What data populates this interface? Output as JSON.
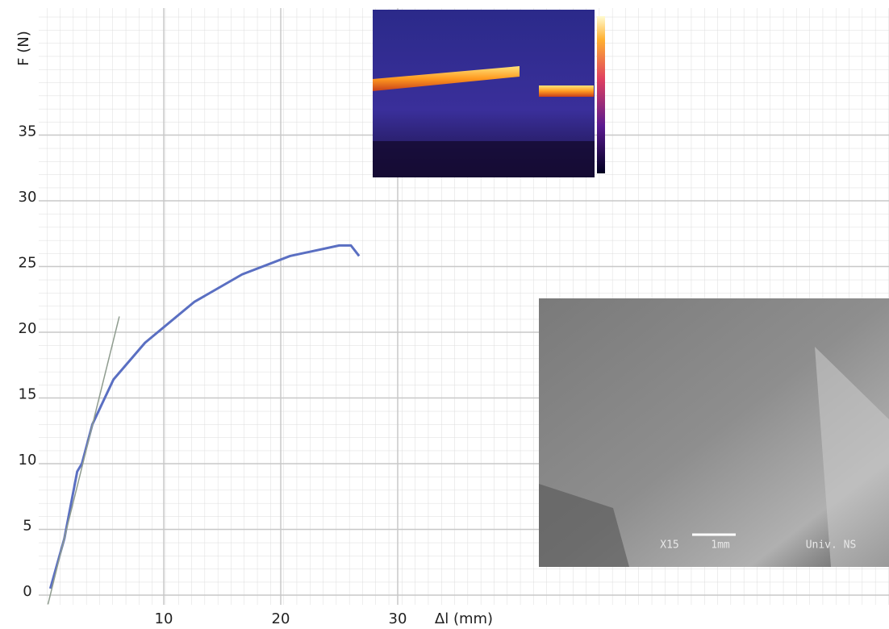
{
  "chart_data": {
    "type": "line",
    "y_label": "F (N)",
    "x_label": "Δl  (mm)",
    "xlim": [
      0,
      72
    ],
    "ylim": [
      0,
      44.5
    ],
    "xticks": [
      10,
      20,
      30
    ],
    "yticks": [
      0,
      5,
      10,
      15,
      20,
      25,
      30,
      35
    ],
    "grid": true,
    "series": [
      {
        "color": "#5a6fc2",
        "x": [
          0.3,
          1.5,
          2.6,
          3.0,
          3.9,
          5.7,
          8.4,
          12.6,
          16.7,
          20.8,
          25.0,
          26.0,
          26.7
        ],
        "values": [
          0.5,
          4.3,
          9.4,
          10.0,
          13.0,
          16.4,
          19.2,
          22.3,
          24.4,
          25.8,
          26.6,
          26.6,
          25.8
        ]
      },
      {
        "color": "#8f9c8f",
        "x": [
          0.1,
          6.2
        ],
        "values": [
          -0.7,
          21.2
        ]
      }
    ],
    "annotations": [
      "X15",
      "1mm",
      "Univ. NS"
    ]
  }
}
